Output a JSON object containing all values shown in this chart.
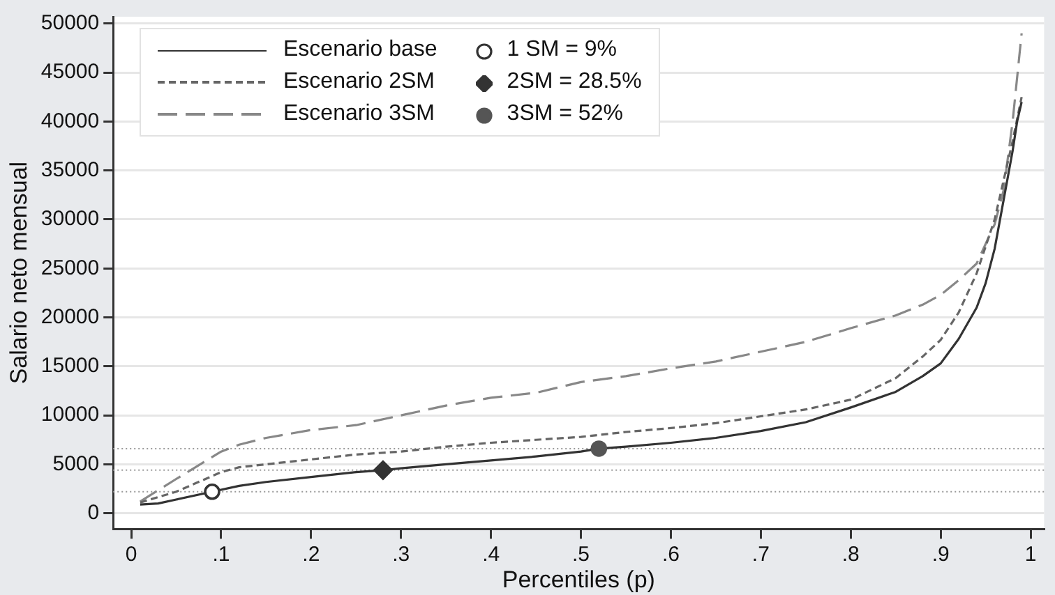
{
  "chart_data": {
    "type": "line",
    "xlabel": "Percentiles (p)",
    "ylabel": "Salario neto mensual",
    "xlim": [
      -0.02,
      1.015
    ],
    "xticks": [
      0,
      {
        "value": 0.1,
        "label": ".1"
      },
      {
        "value": 0.2,
        "label": ".2"
      },
      {
        "value": 0.3,
        "label": ".3"
      },
      {
        "value": 0.4,
        "label": ".4"
      },
      {
        "value": 0.5,
        "label": ".5"
      },
      {
        "value": 0.6,
        "label": ".6"
      },
      {
        "value": 0.7,
        "label": ".7"
      },
      {
        "value": 0.8,
        "label": ".8"
      },
      {
        "value": 0.9,
        "label": ".9"
      },
      1
    ],
    "ylim": [
      -1600,
      50700
    ],
    "yticks": [
      0,
      5000,
      10000,
      15000,
      20000,
      25000,
      30000,
      35000,
      40000,
      45000,
      50000
    ],
    "grid": "y",
    "legend": "top left",
    "series": [
      {
        "name": "Escenario base",
        "color": "#333333",
        "line_style": "solid",
        "marker": "none",
        "x": [
          0.01,
          0.03,
          0.05,
          0.09,
          0.12,
          0.15,
          0.2,
          0.25,
          0.28,
          0.3,
          0.35,
          0.4,
          0.45,
          0.5,
          0.52,
          0.55,
          0.6,
          0.65,
          0.7,
          0.75,
          0.8,
          0.85,
          0.88,
          0.9,
          0.92,
          0.94,
          0.95,
          0.96,
          0.97,
          0.98,
          0.985,
          0.99
        ],
        "values": [
          900,
          1000,
          1400,
          2200,
          2800,
          3200,
          3700,
          4200,
          4400,
          4600,
          5000,
          5400,
          5800,
          6300,
          6600,
          6800,
          7200,
          7700,
          8400,
          9300,
          10800,
          12400,
          14000,
          15300,
          17800,
          21000,
          23500,
          27000,
          32000,
          37000,
          40000,
          42000
        ]
      },
      {
        "name": "Escenario 2SM",
        "color": "#666666",
        "line_style": "dashed",
        "marker": "none",
        "x": [
          0.01,
          0.05,
          0.1,
          0.12,
          0.15,
          0.2,
          0.25,
          0.3,
          0.35,
          0.4,
          0.45,
          0.5,
          0.55,
          0.6,
          0.65,
          0.7,
          0.75,
          0.8,
          0.85,
          0.88,
          0.9,
          0.92,
          0.94,
          0.96,
          0.97,
          0.98,
          0.99
        ],
        "values": [
          1100,
          2200,
          4200,
          4700,
          5000,
          5500,
          6000,
          6300,
          6800,
          7200,
          7500,
          7800,
          8300,
          8700,
          9200,
          9900,
          10600,
          11600,
          13800,
          16000,
          17700,
          20500,
          24500,
          30000,
          34000,
          38000,
          42500
        ]
      },
      {
        "name": "Escenario 3SM",
        "color": "#888888",
        "line_style": "long-dashed",
        "marker": "none",
        "x": [
          0.01,
          0.05,
          0.1,
          0.12,
          0.15,
          0.2,
          0.25,
          0.3,
          0.35,
          0.4,
          0.45,
          0.5,
          0.55,
          0.6,
          0.65,
          0.7,
          0.75,
          0.8,
          0.85,
          0.88,
          0.9,
          0.92,
          0.94,
          0.96,
          0.97,
          0.98,
          0.99
        ],
        "values": [
          1200,
          3500,
          6300,
          7000,
          7700,
          8500,
          9000,
          10000,
          11000,
          11800,
          12300,
          13400,
          14000,
          14800,
          15500,
          16500,
          17500,
          18900,
          20200,
          21300,
          22300,
          23800,
          25500,
          29500,
          33000,
          40000,
          49000
        ]
      },
      {
        "type": "scatter",
        "name": "1 SM = 9%",
        "color": "#333333",
        "marker": "circle-open",
        "x": [
          0.09
        ],
        "values": [
          2200
        ]
      },
      {
        "type": "scatter",
        "name": "2SM = 28.5%",
        "color": "#333333",
        "marker": "diamond",
        "x": [
          0.28
        ],
        "values": [
          4400
        ]
      },
      {
        "type": "scatter",
        "name": "3SM = 52%",
        "color": "#555555",
        "marker": "circle",
        "x": [
          0.52
        ],
        "values": [
          6600
        ]
      }
    ],
    "ref_lines": [
      {
        "axis": "y",
        "value": 2200,
        "color": "#999999",
        "line_style": "dotted"
      },
      {
        "axis": "y",
        "value": 4400,
        "color": "#999999",
        "line_style": "dotted"
      },
      {
        "axis": "y",
        "value": 6600,
        "color": "#999999",
        "line_style": "dotted"
      }
    ]
  }
}
